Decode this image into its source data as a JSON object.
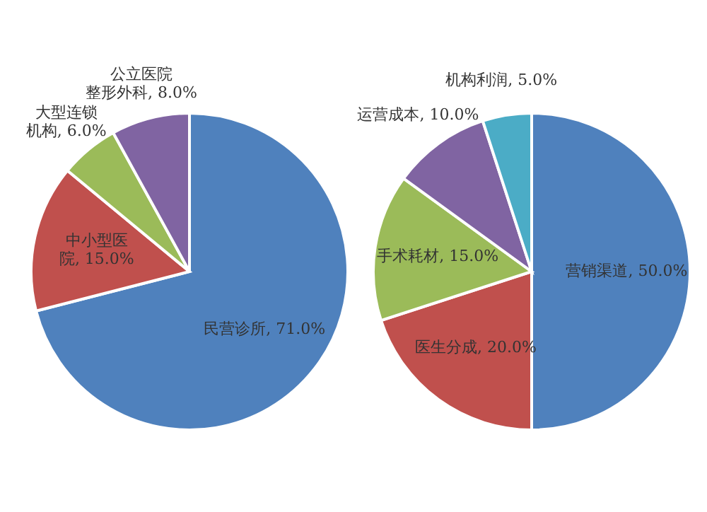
{
  "chart_data": [
    {
      "type": "pie",
      "categories": [
        "民营诊所",
        "中小型医院",
        "大型连锁机构",
        "公立医院整形外科"
      ],
      "values": [
        71.0,
        15.0,
        6.0,
        8.0
      ],
      "colors": [
        "#4f81bd",
        "#c0504d",
        "#9bbb59",
        "#8064a2"
      ],
      "value_labels": [
        "71.0%",
        "15.0%",
        "6.0%",
        "8.0%"
      ],
      "legend": false
    },
    {
      "type": "pie",
      "categories": [
        "营销渠道",
        "医生分成",
        "手术耗材",
        "运营成本",
        "机构利润"
      ],
      "values": [
        50.0,
        20.0,
        15.0,
        10.0,
        5.0
      ],
      "colors": [
        "#4f81bd",
        "#c0504d",
        "#9bbb59",
        "#8064a2",
        "#4bacc6"
      ],
      "value_labels": [
        "50.0%",
        "20.0%",
        "15.0%",
        "10.0%",
        "5.0%"
      ],
      "legend": false
    }
  ]
}
